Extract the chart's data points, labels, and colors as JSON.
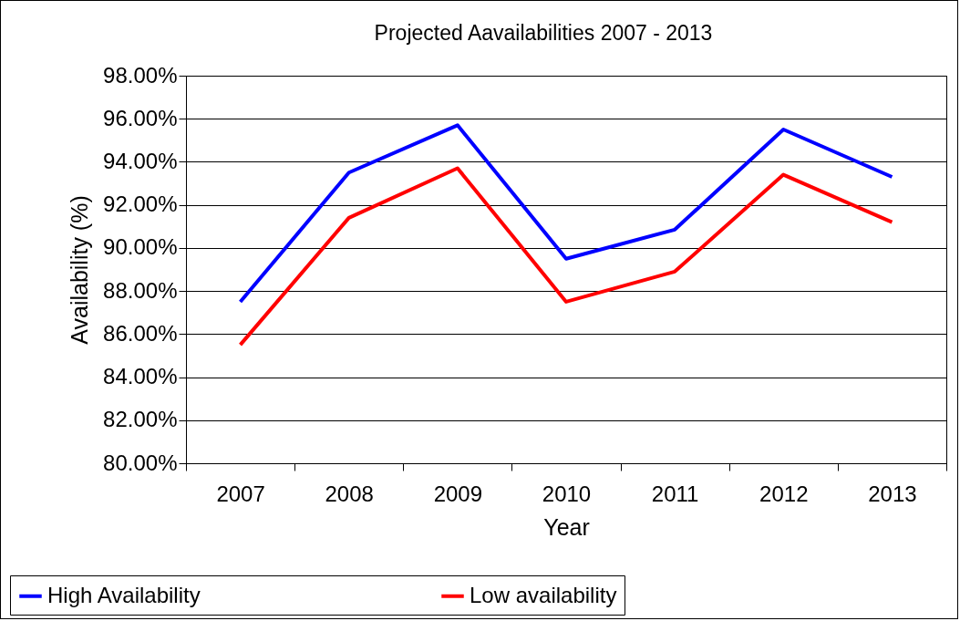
{
  "chart_data": {
    "type": "line",
    "title": "Projected Aavailabilities 2007 - 2013",
    "xlabel": "Year",
    "ylabel": "Availability (%)",
    "categories": [
      "2007",
      "2008",
      "2009",
      "2010",
      "2011",
      "2012",
      "2013"
    ],
    "series": [
      {
        "name": "High Availability",
        "color": "#0000ff",
        "values": [
          87.5,
          93.5,
          95.7,
          89.5,
          90.85,
          95.5,
          93.3
        ]
      },
      {
        "name": "Low availability",
        "color": "#ff0000",
        "values": [
          85.5,
          91.4,
          93.7,
          87.5,
          88.9,
          93.4,
          91.2
        ]
      }
    ],
    "ylim": [
      80,
      98
    ],
    "yticks": [
      {
        "value": 80,
        "label": "80.00%"
      },
      {
        "value": 82,
        "label": "82.00%"
      },
      {
        "value": 84,
        "label": "84.00%"
      },
      {
        "value": 86,
        "label": "86.00%"
      },
      {
        "value": 88,
        "label": "88.00%"
      },
      {
        "value": 90,
        "label": "90.00%"
      },
      {
        "value": 92,
        "label": "92.00%"
      },
      {
        "value": 94,
        "label": "94.00%"
      },
      {
        "value": 96,
        "label": "96.00%"
      },
      {
        "value": 98,
        "label": "98.00%"
      }
    ],
    "grid": "y",
    "legend": "bottom"
  }
}
